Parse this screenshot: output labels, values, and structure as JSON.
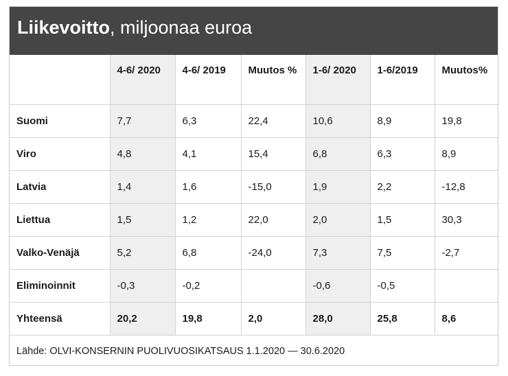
{
  "title": {
    "bold": "Liikevoitto",
    "rest": ", miljoonaa euroa"
  },
  "columns": [
    "",
    "4-6/ 2020",
    "4-6/ 2019",
    "Muutos %",
    "1-6/ 2020",
    "1-6/2019",
    "Muutos%"
  ],
  "rows": [
    [
      "Suomi",
      "7,7",
      "6,3",
      "22,4",
      "10,6",
      "8,9",
      "19,8"
    ],
    [
      "Viro",
      "4,8",
      "4,1",
      "15,4",
      "6,8",
      "6,3",
      "8,9"
    ],
    [
      "Latvia",
      "1,4",
      "1,6",
      "-15,0",
      "1,9",
      "2,2",
      "-12,8"
    ],
    [
      "Liettua",
      "1,5",
      "1,2",
      "22,0",
      "2,0",
      "1,5",
      "30,3"
    ],
    [
      "Valko-Venäjä",
      "5,2",
      "6,8",
      "-24,0",
      "7,3",
      "7,5",
      "-2,7"
    ],
    [
      "Eliminoinnit",
      "-0,3",
      "-0,2",
      "",
      "-0,6",
      "-0,5",
      ""
    ],
    [
      "Yhteensä",
      "20,2",
      "19,8",
      "2,0",
      "28,0",
      "25,8",
      "8,6"
    ]
  ],
  "source": "Lähde: OLVI-KONSERNIN PUOLIVUOSIKATSAUS 1.1.2020 — 30.6.2020",
  "colors": {
    "title_bg": "#454545",
    "shaded_column": "#efefef",
    "grid": "#d3d3d3"
  },
  "chart_data": {
    "type": "table",
    "title": "Liikevoitto, miljoonaa euroa",
    "columns": [
      "4-6/ 2020",
      "4-6/ 2019",
      "Muutos %",
      "1-6/ 2020",
      "1-6/2019",
      "Muutos%"
    ],
    "row_labels": [
      "Suomi",
      "Viro",
      "Latvia",
      "Liettua",
      "Valko-Venäjä",
      "Eliminoinnit",
      "Yhteensä"
    ],
    "values": [
      [
        7.7,
        6.3,
        22.4,
        10.6,
        8.9,
        19.8
      ],
      [
        4.8,
        4.1,
        15.4,
        6.8,
        6.3,
        8.9
      ],
      [
        1.4,
        1.6,
        -15.0,
        1.9,
        2.2,
        -12.8
      ],
      [
        1.5,
        1.2,
        22.0,
        2.0,
        1.5,
        30.3
      ],
      [
        5.2,
        6.8,
        -24.0,
        7.3,
        7.5,
        -2.7
      ],
      [
        -0.3,
        -0.2,
        null,
        -0.6,
        -0.5,
        null
      ],
      [
        20.2,
        19.8,
        2.0,
        28.0,
        25.8,
        8.6
      ]
    ]
  }
}
